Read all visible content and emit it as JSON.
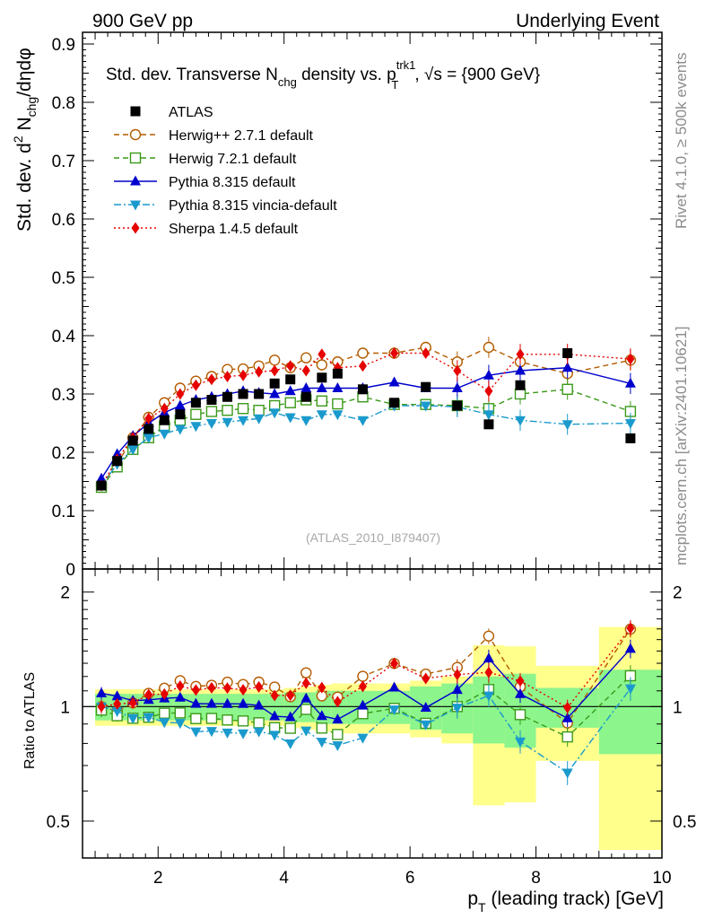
{
  "header": {
    "left": "900 GeV pp",
    "right": "Underlying Event"
  },
  "side_text": {
    "rivet": "Rivet 4.1.0, ≥ 500k events",
    "mcplots": "mcplots.cern.ch [arXiv:2401.10621]"
  },
  "chart_data": {
    "type": "scatter",
    "title": {
      "prefix": "Std. dev. Transverse N",
      "prefix_sub": "chg",
      "middle": " density vs. p",
      "middle_sup": "trk1",
      "middle_sub": "T",
      "suffix": ", √s = {900 GeV}"
    },
    "ylabel": {
      "main": "Std. dev. d",
      "sup": "2",
      "n": " N",
      "n_sub": "chg",
      "tail": "/dηdφ"
    },
    "xlabel": {
      "p": "p",
      "p_sub": "T",
      "rest": " (leading track) [GeV]"
    },
    "ratio_ylabel": "Ratio to ATLAS",
    "watermark": "(ATLAS_2010_I879407)",
    "xlim": [
      0.8,
      10.0
    ],
    "ylim_main": [
      0,
      0.92
    ],
    "ylim_ratio": [
      0.4,
      2.3
    ],
    "main_yticks": [
      "0",
      "0.1",
      "0.2",
      "0.3",
      "0.4",
      "0.5",
      "0.6",
      "0.7",
      "0.8",
      "0.9"
    ],
    "main_ytick_values": [
      0,
      0.1,
      0.2,
      0.3,
      0.4,
      0.5,
      0.6,
      0.7,
      0.8,
      0.9
    ],
    "ratio_yticks": [
      "0.5",
      "1",
      "2"
    ],
    "ratio_ytick_values": [
      0.5,
      1,
      2
    ],
    "xticks": [
      "2",
      "4",
      "6",
      "8",
      "10"
    ],
    "xtick_values": [
      2,
      4,
      6,
      8,
      10
    ],
    "x": [
      1.1,
      1.35,
      1.6,
      1.85,
      2.1,
      2.35,
      2.6,
      2.85,
      3.1,
      3.35,
      3.6,
      3.85,
      4.1,
      4.35,
      4.6,
      4.85,
      5.25,
      5.75,
      6.25,
      6.75,
      7.25,
      7.75,
      8.5,
      9.5
    ],
    "bin_edges": [
      1.0,
      1.25,
      1.5,
      1.75,
      2.0,
      2.25,
      2.5,
      2.75,
      3.0,
      3.25,
      3.5,
      3.75,
      4.0,
      4.25,
      4.5,
      4.75,
      5.0,
      5.5,
      6.0,
      6.5,
      7.0,
      7.5,
      8.0,
      9.0,
      10.0
    ],
    "data": {
      "name": "ATLAS",
      "values": [
        0.143,
        0.185,
        0.22,
        0.24,
        0.255,
        0.265,
        0.285,
        0.29,
        0.295,
        0.3,
        0.3,
        0.318,
        0.325,
        0.295,
        0.328,
        0.335,
        0.308,
        0.285,
        0.312,
        0.28,
        0.248,
        0.315,
        0.37,
        0.224
      ]
    },
    "band_green": [
      0.08,
      0.08,
      0.08,
      0.08,
      0.08,
      0.08,
      0.08,
      0.08,
      0.08,
      0.08,
      0.08,
      0.08,
      0.09,
      0.09,
      0.1,
      0.1,
      0.1,
      0.1,
      0.13,
      0.15,
      0.2,
      0.22,
      0.12,
      0.25
    ],
    "band_yellow": [
      0.11,
      0.11,
      0.11,
      0.11,
      0.11,
      0.11,
      0.11,
      0.11,
      0.11,
      0.11,
      0.11,
      0.11,
      0.12,
      0.13,
      0.14,
      0.15,
      0.15,
      0.15,
      0.17,
      0.2,
      0.45,
      0.44,
      0.28,
      0.62
    ],
    "series": [
      {
        "name": "Herwig++ 2.7.1 default",
        "color": "#b35c00",
        "marker": "open-circle",
        "dash": "6,4",
        "values": [
          0.143,
          0.18,
          0.225,
          0.26,
          0.285,
          0.31,
          0.322,
          0.33,
          0.342,
          0.343,
          0.348,
          0.358,
          0.345,
          0.362,
          0.35,
          0.355,
          0.37,
          0.37,
          0.38,
          0.355,
          0.38,
          0.355,
          0.335,
          0.358
        ]
      },
      {
        "name": "Herwig 7.2.1 default",
        "color": "#3a9a1a",
        "marker": "open-square",
        "dash": "6,4",
        "values": [
          0.14,
          0.175,
          0.205,
          0.225,
          0.245,
          0.255,
          0.265,
          0.27,
          0.272,
          0.275,
          0.272,
          0.28,
          0.285,
          0.29,
          0.288,
          0.283,
          0.295,
          0.282,
          0.282,
          0.28,
          0.275,
          0.3,
          0.308,
          0.27
        ]
      },
      {
        "name": "Pythia 8.315 default",
        "color": "#0000cc",
        "marker": "filled-triangle-up",
        "dash": "",
        "values": [
          0.155,
          0.197,
          0.228,
          0.25,
          0.268,
          0.28,
          0.29,
          0.295,
          0.3,
          0.305,
          0.302,
          0.3,
          0.305,
          0.31,
          0.31,
          0.31,
          0.31,
          0.32,
          0.31,
          0.31,
          0.332,
          0.34,
          0.345,
          0.318
        ]
      },
      {
        "name": "Pythia 8.315 vincia-default",
        "color": "#1a9acc",
        "marker": "filled-triangle-down",
        "dash": "8,3,2,3",
        "values": [
          0.143,
          0.18,
          0.205,
          0.225,
          0.232,
          0.24,
          0.245,
          0.25,
          0.252,
          0.255,
          0.258,
          0.268,
          0.26,
          0.255,
          0.265,
          0.265,
          0.255,
          0.28,
          0.28,
          0.278,
          0.265,
          0.255,
          0.248,
          0.25
        ]
      },
      {
        "name": "Sherpa 1.4.5 default",
        "color": "#e60000",
        "marker": "filled-diamond",
        "dash": "2,3",
        "values": [
          0.143,
          0.188,
          0.225,
          0.258,
          0.275,
          0.3,
          0.315,
          0.325,
          0.33,
          0.332,
          0.338,
          0.34,
          0.348,
          0.34,
          0.368,
          0.345,
          0.348,
          0.37,
          0.37,
          0.34,
          0.305,
          0.368,
          0.368,
          0.36
        ]
      }
    ]
  }
}
